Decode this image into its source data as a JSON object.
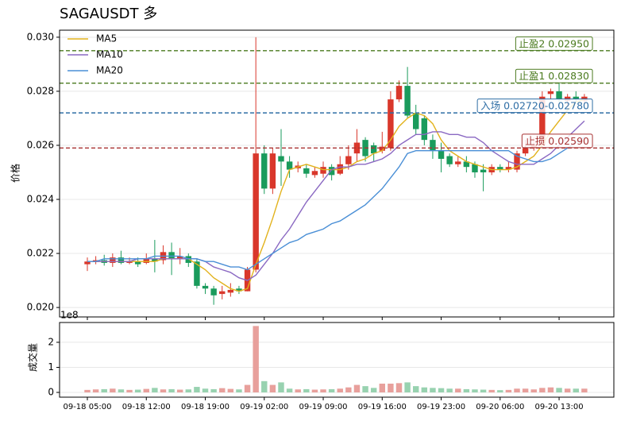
{
  "chart_data": [
    {
      "type": "candlestick",
      "title": "SAGAUSDT  多",
      "y_label": "价格",
      "categories": [
        "09-18 05:00",
        null,
        null,
        null,
        null,
        null,
        null,
        "09-18 12:00",
        null,
        null,
        null,
        null,
        null,
        null,
        "09-18 19:00",
        null,
        null,
        null,
        null,
        null,
        null,
        "09-19 02:00",
        null,
        null,
        null,
        null,
        null,
        null,
        "09-19 09:00",
        null,
        null,
        null,
        null,
        null,
        null,
        "09-19 16:00",
        null,
        null,
        null,
        null,
        null,
        null,
        "09-19 23:00",
        null,
        null,
        null,
        null,
        null,
        null,
        "09-20 06:00",
        null,
        null,
        null,
        null,
        null,
        null,
        "09-20 13:00",
        null,
        null,
        null
      ],
      "open": [
        0.0216,
        0.0217,
        0.02175,
        0.02165,
        0.02185,
        0.02165,
        0.0217,
        0.02165,
        0.0218,
        0.02175,
        0.02205,
        0.0218,
        0.0219,
        0.0217,
        0.0208,
        0.0207,
        0.0205,
        0.02055,
        0.0207,
        0.0206,
        0.0214,
        0.0257,
        0.0244,
        0.0256,
        0.0254,
        0.02515,
        0.02515,
        0.0249,
        0.02495,
        0.0252,
        0.02495,
        0.0253,
        0.0257,
        0.0262,
        0.026,
        0.0258,
        0.0259,
        0.0277,
        0.0282,
        0.0272,
        0.027,
        0.0262,
        0.0258,
        0.0256,
        0.0253,
        0.0254,
        0.0253,
        0.0251,
        0.025,
        0.0252,
        0.0251,
        0.0251,
        0.0257,
        0.0259,
        0.026,
        0.0279,
        0.028,
        0.02765,
        0.0278,
        0.02765
      ],
      "high": [
        0.02185,
        0.0219,
        0.02195,
        0.022,
        0.0221,
        0.02185,
        0.02185,
        0.022,
        0.0225,
        0.0223,
        0.0224,
        0.0222,
        0.022,
        0.0218,
        0.0209,
        0.0208,
        0.0208,
        0.0209,
        0.0208,
        0.0215,
        0.03,
        0.026,
        0.0259,
        0.0266,
        0.0256,
        0.0254,
        0.0253,
        0.0252,
        0.0254,
        0.0253,
        0.0256,
        0.026,
        0.0266,
        0.0263,
        0.0261,
        0.0265,
        0.028,
        0.0284,
        0.0289,
        0.0275,
        0.0271,
        0.0264,
        0.0261,
        0.0257,
        0.0256,
        0.0256,
        0.0254,
        0.0253,
        0.0253,
        0.0253,
        0.0254,
        0.0258,
        0.0262,
        0.0263,
        0.028,
        0.0281,
        0.0283,
        0.0279,
        0.028,
        0.0279
      ],
      "low": [
        0.02135,
        0.0216,
        0.02155,
        0.0215,
        0.0216,
        0.0216,
        0.0215,
        0.0216,
        0.0213,
        0.0216,
        0.0212,
        0.0216,
        0.0215,
        0.0207,
        0.0205,
        0.0201,
        0.0203,
        0.0204,
        0.0205,
        0.0206,
        0.0213,
        0.0242,
        0.0242,
        0.0245,
        0.0248,
        0.025,
        0.0248,
        0.0248,
        0.0248,
        0.0247,
        0.0249,
        0.0251,
        0.0254,
        0.0254,
        0.0254,
        0.0257,
        0.0258,
        0.0276,
        0.027,
        0.0264,
        0.026,
        0.0255,
        0.025,
        0.0252,
        0.0252,
        0.025,
        0.0248,
        0.0243,
        0.0249,
        0.025,
        0.025,
        0.025,
        0.0256,
        0.0258,
        0.0259,
        0.0277,
        0.0276,
        0.0274,
        0.0276,
        0.0275
      ],
      "close": [
        0.0217,
        0.02175,
        0.02165,
        0.02185,
        0.02165,
        0.0217,
        0.0216,
        0.0218,
        0.0217,
        0.02205,
        0.0218,
        0.0219,
        0.02165,
        0.0208,
        0.0207,
        0.02045,
        0.0206,
        0.02065,
        0.0206,
        0.0214,
        0.0257,
        0.0244,
        0.0257,
        0.0254,
        0.0251,
        0.02525,
        0.02495,
        0.02505,
        0.0252,
        0.0249,
        0.0253,
        0.0256,
        0.0261,
        0.0256,
        0.0257,
        0.02595,
        0.0277,
        0.0282,
        0.0271,
        0.0266,
        0.0262,
        0.0258,
        0.0255,
        0.0253,
        0.0254,
        0.0252,
        0.025,
        0.025,
        0.0252,
        0.0251,
        0.0252,
        0.0257,
        0.0259,
        0.026,
        0.0278,
        0.028,
        0.0277,
        0.0278,
        0.0277,
        0.0278
      ],
      "up_color": "#d9372b",
      "down_color": "#1a9b5c",
      "series": [
        {
          "name": "MA5",
          "color": "#e2b21c",
          "values": [
            0.0217,
            0.0217,
            0.0217,
            0.0217,
            0.0217,
            0.0217,
            0.0217,
            0.0217,
            0.0217,
            0.0218,
            0.0218,
            0.0218,
            0.0218,
            0.0216,
            0.0214,
            0.0211,
            0.0209,
            0.0207,
            0.0206,
            0.0207,
            0.0216,
            0.0224,
            0.0233,
            0.0243,
            0.0251,
            0.0252,
            0.0253,
            0.0252,
            0.0251,
            0.0251,
            0.0251,
            0.0252,
            0.0254,
            0.0255,
            0.0257,
            0.0258,
            0.0262,
            0.0267,
            0.027,
            0.0272,
            0.0271,
            0.0268,
            0.0262,
            0.0258,
            0.0256,
            0.0254,
            0.0253,
            0.0252,
            0.0251,
            0.0251,
            0.0251,
            0.0252,
            0.0254,
            0.0256,
            0.026,
            0.0265,
            0.0269,
            0.0273,
            0.0276,
            0.0277
          ]
        },
        {
          "name": "MA10",
          "color": "#8a68c2",
          "values": [
            0.0217,
            0.0217,
            0.0217,
            0.0217,
            0.0217,
            0.0217,
            0.0218,
            0.0218,
            0.0218,
            0.0218,
            0.0218,
            0.0218,
            0.0218,
            0.0218,
            0.0217,
            0.0215,
            0.0214,
            0.0213,
            0.0211,
            0.021,
            0.0212,
            0.0216,
            0.022,
            0.0225,
            0.0229,
            0.0234,
            0.0239,
            0.0243,
            0.0247,
            0.0251,
            0.0252,
            0.0252,
            0.0253,
            0.0253,
            0.0254,
            0.0255,
            0.0257,
            0.026,
            0.0262,
            0.0264,
            0.0264,
            0.0265,
            0.0265,
            0.0264,
            0.0264,
            0.0263,
            0.0263,
            0.0261,
            0.0258,
            0.0256,
            0.0254,
            0.0253,
            0.0253,
            0.0253,
            0.0255,
            0.0257,
            0.026,
            0.0263,
            0.0266,
            0.0269
          ]
        },
        {
          "name": "MA20",
          "color": "#4a8fd6",
          "values": [
            0.0217,
            0.0217,
            0.0218,
            0.0218,
            0.0218,
            0.0218,
            0.0218,
            0.0218,
            0.0219,
            0.0219,
            0.0219,
            0.0219,
            0.0218,
            0.0218,
            0.0217,
            0.0217,
            0.0216,
            0.0215,
            0.0215,
            0.0214,
            0.0216,
            0.0218,
            0.022,
            0.0222,
            0.0224,
            0.0225,
            0.0227,
            0.0228,
            0.0229,
            0.0231,
            0.0232,
            0.0234,
            0.0236,
            0.0238,
            0.0241,
            0.0244,
            0.0248,
            0.0252,
            0.0257,
            0.0258,
            0.0258,
            0.0258,
            0.0258,
            0.0258,
            0.0258,
            0.0258,
            0.0258,
            0.0258,
            0.0258,
            0.0258,
            0.0258,
            0.0256,
            0.0255,
            0.0254,
            0.0254,
            0.0255,
            0.0257,
            0.0259,
            0.0261,
            0.0263
          ]
        }
      ],
      "levels": [
        {
          "value": 0.0295,
          "label": "止盈2 0.02950",
          "color": "#4a7a1e"
        },
        {
          "value": 0.0283,
          "label": "止盈1 0.02830",
          "color": "#4a7a1e"
        },
        {
          "value": 0.0272,
          "label": "入场 0.02720-0.02780",
          "color": "#2f6ea5"
        },
        {
          "value": 0.0259,
          "label": "止损 0.02590",
          "color": "#a83232"
        }
      ],
      "xlim": [
        -3.3,
        62.5
      ],
      "ylim": [
        0.01965,
        0.03026
      ],
      "yticks": [
        {
          "value": 0.02,
          "label": "0.020"
        },
        {
          "value": 0.022,
          "label": "0.022"
        },
        {
          "value": 0.024,
          "label": "0.024"
        },
        {
          "value": 0.026,
          "label": "0.026"
        },
        {
          "value": 0.028,
          "label": "0.028"
        },
        {
          "value": 0.03,
          "label": "0.030"
        }
      ],
      "grid": true,
      "legend": "upper left"
    },
    {
      "type": "bar",
      "y_label": "成交量",
      "offset_label": "1e8",
      "values": [
        0.1,
        0.12,
        0.13,
        0.15,
        0.12,
        0.1,
        0.11,
        0.14,
        0.18,
        0.12,
        0.13,
        0.11,
        0.12,
        0.22,
        0.15,
        0.13,
        0.17,
        0.14,
        0.12,
        0.3,
        2.65,
        0.45,
        0.3,
        0.4,
        0.15,
        0.12,
        0.13,
        0.11,
        0.12,
        0.13,
        0.15,
        0.2,
        0.3,
        0.25,
        0.18,
        0.35,
        0.35,
        0.37,
        0.4,
        0.25,
        0.2,
        0.18,
        0.17,
        0.15,
        0.15,
        0.13,
        0.12,
        0.11,
        0.1,
        0.09,
        0.1,
        0.15,
        0.15,
        0.12,
        0.18,
        0.2,
        0.18,
        0.15,
        0.15,
        0.15
      ],
      "up_color": "#e8a09c",
      "down_color": "#98d2b0",
      "ylim": [
        -0.19,
        2.79
      ],
      "yticks": [
        0,
        1,
        2
      ]
    }
  ]
}
